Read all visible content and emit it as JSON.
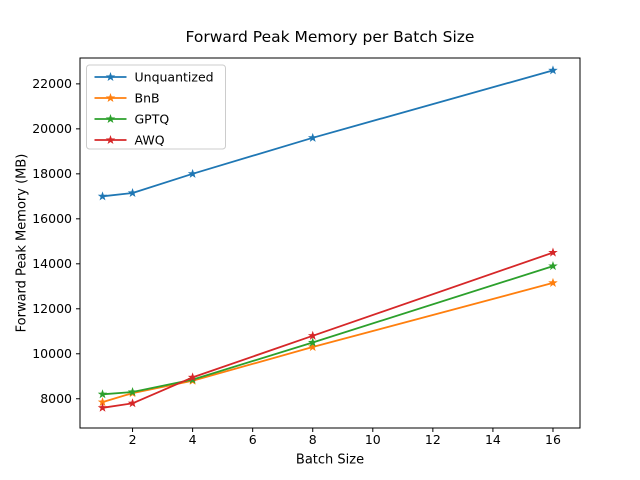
{
  "window": {
    "background": "#ffffff"
  },
  "chart_data": {
    "type": "line",
    "title": "Forward Peak Memory per Batch Size",
    "xlabel": "Batch Size",
    "ylabel": "Forward Peak Memory (MB)",
    "x": [
      1,
      2,
      4,
      8,
      16
    ],
    "series": [
      {
        "name": "Unquantized",
        "color": "#1f77b4",
        "values": [
          17000,
          17150,
          18000,
          19600,
          22600
        ]
      },
      {
        "name": "BnB",
        "color": "#ff7f0e",
        "values": [
          7850,
          8250,
          8800,
          10300,
          13150
        ]
      },
      {
        "name": "GPTQ",
        "color": "#2ca02c",
        "values": [
          8200,
          8300,
          8850,
          10500,
          13900
        ]
      },
      {
        "name": "AWQ",
        "color": "#d62728",
        "values": [
          7600,
          7800,
          8950,
          10800,
          14500
        ]
      }
    ],
    "x_ticks": [
      2,
      4,
      6,
      8,
      10,
      12,
      14,
      16
    ],
    "y_ticks": [
      8000,
      10000,
      12000,
      14000,
      16000,
      18000,
      20000,
      22000
    ],
    "xlim": [
      0.25,
      16.9
    ],
    "ylim": [
      6700,
      23150
    ],
    "grid": false,
    "marker": "star",
    "legend_position": "upper left",
    "axis_color": "#000000",
    "legend_border_color": "#cccccc"
  }
}
